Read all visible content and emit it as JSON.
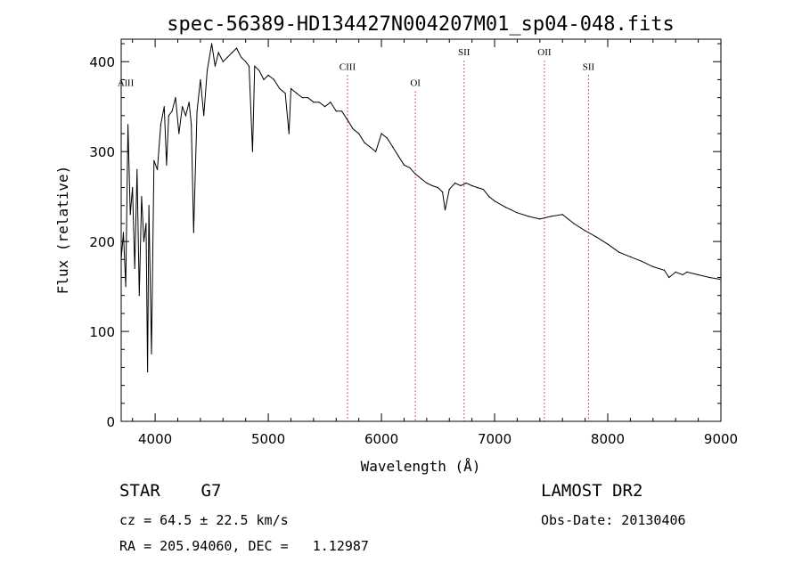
{
  "chart_data": {
    "type": "line",
    "title": "spec-56389-HD134427N004207M01_sp04-048.fits",
    "xlabel": "Wavelength (Å)",
    "ylabel": "Flux (relative)",
    "xlim": [
      3700,
      9000
    ],
    "ylim": [
      0,
      425
    ],
    "xticks": [
      4000,
      5000,
      6000,
      7000,
      8000,
      9000
    ],
    "yticks": [
      0,
      100,
      200,
      300,
      400
    ],
    "grid": false,
    "series": [
      {
        "x": [
          3700,
          3720,
          3740,
          3760,
          3780,
          3800,
          3820,
          3840,
          3860,
          3880,
          3900,
          3920,
          3933,
          3945,
          3968,
          3990,
          4020,
          4050,
          4080,
          4101,
          4120,
          4150,
          4180,
          4210,
          4240,
          4270,
          4300,
          4320,
          4340,
          4370,
          4400,
          4430,
          4460,
          4500,
          4530,
          4560,
          4600,
          4640,
          4680,
          4720,
          4760,
          4800,
          4830,
          4861,
          4880,
          4920,
          4960,
          5000,
          5050,
          5100,
          5150,
          5183,
          5200,
          5250,
          5300,
          5350,
          5400,
          5450,
          5500,
          5550,
          5600,
          5650,
          5700,
          5750,
          5800,
          5850,
          5900,
          5950,
          6000,
          6050,
          6100,
          6150,
          6200,
          6250,
          6300,
          6350,
          6400,
          6450,
          6500,
          6540,
          6563,
          6600,
          6650,
          6700,
          6750,
          6800,
          6850,
          6900,
          6950,
          7000,
          7100,
          7200,
          7300,
          7400,
          7500,
          7600,
          7700,
          7800,
          7900,
          8000,
          8100,
          8200,
          8300,
          8400,
          8500,
          8542,
          8600,
          8662,
          8700,
          8800,
          8900,
          8990
        ],
        "y": [
          180,
          210,
          150,
          330,
          230,
          260,
          170,
          280,
          140,
          250,
          200,
          220,
          55,
          240,
          75,
          290,
          280,
          330,
          350,
          285,
          340,
          345,
          360,
          320,
          350,
          340,
          355,
          330,
          210,
          345,
          380,
          340,
          390,
          420,
          395,
          410,
          400,
          405,
          410,
          415,
          405,
          400,
          395,
          300,
          395,
          390,
          380,
          385,
          380,
          370,
          365,
          320,
          370,
          365,
          360,
          360,
          355,
          355,
          350,
          355,
          345,
          345,
          335,
          325,
          320,
          310,
          305,
          300,
          320,
          315,
          305,
          295,
          285,
          282,
          275,
          270,
          265,
          262,
          260,
          255,
          235,
          258,
          265,
          262,
          265,
          262,
          260,
          258,
          250,
          245,
          238,
          232,
          228,
          225,
          228,
          230,
          220,
          212,
          205,
          197,
          188,
          183,
          178,
          172,
          168,
          160,
          166,
          163,
          166,
          163,
          160,
          158
        ]
      }
    ],
    "annotations": [
      {
        "label": "AlII",
        "x": 3740,
        "y": 373,
        "line": false
      },
      {
        "label": "CIII",
        "x": 5700,
        "y": 391,
        "line": true
      },
      {
        "label": "OI",
        "x": 6300,
        "y": 373,
        "line": true
      },
      {
        "label": "SII",
        "x": 6730,
        "y": 407,
        "line": true
      },
      {
        "label": "OII",
        "x": 7440,
        "y": 407,
        "line": true
      },
      {
        "label": "SII",
        "x": 7830,
        "y": 391,
        "line": true
      }
    ]
  },
  "info": {
    "class_line": "STAR    G7",
    "cz_line": "cz = 64.5 ± 22.5 km/s",
    "radec_line": "RA = 205.94060, DEC =   1.12987",
    "survey": "LAMOST DR2",
    "obs_date": "Obs-Date: 20130406"
  },
  "colors": {
    "ink": "#000000",
    "line_marker": "#d22020",
    "background": "#ffffff"
  }
}
